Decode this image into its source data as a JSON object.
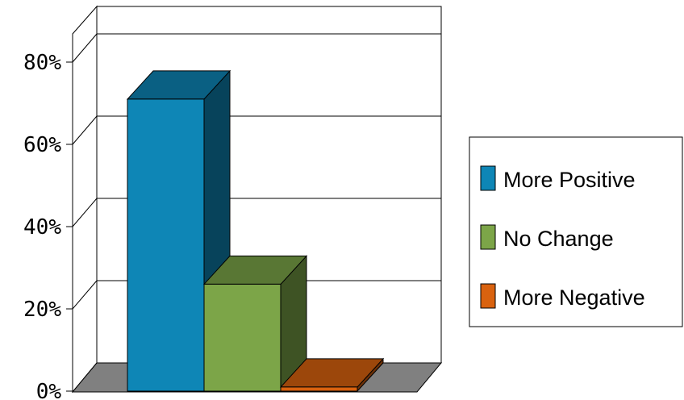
{
  "chart_data": {
    "type": "bar",
    "categories": [
      ""
    ],
    "series": [
      {
        "name": "More Positive",
        "values": [
          71
        ],
        "color": "#0e86b6"
      },
      {
        "name": "No Change",
        "values": [
          26
        ],
        "color": "#7ca548"
      },
      {
        "name": "More Negative",
        "values": [
          1
        ],
        "color": "#d9620f"
      }
    ],
    "y_ticks": [
      "0%",
      "20%",
      "40%",
      "60%",
      "80%"
    ],
    "ylim": [
      0,
      80
    ],
    "grid": true,
    "legend": "right",
    "three_d": true
  }
}
